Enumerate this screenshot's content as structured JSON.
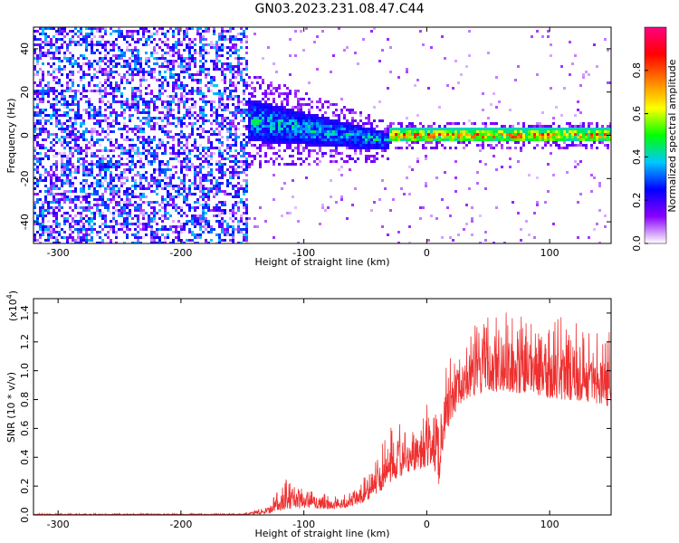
{
  "title": "GN03.2023.231.08.47.C44",
  "chart_data": [
    {
      "type": "heatmap",
      "xlabel": "Height of straight line (km)",
      "ylabel": "Frequency (Hz)",
      "xlim": [
        -320,
        150
      ],
      "ylim": [
        -50,
        50
      ],
      "xticks": [
        -300,
        -200,
        -100,
        0,
        100
      ],
      "yticks": [
        -40,
        -20,
        0,
        20,
        40
      ],
      "colorbar": {
        "label": "Normalized spectral amplitude",
        "range": [
          0.0,
          1.0
        ],
        "ticks": [
          "0.0",
          "0.2",
          "0.4",
          "0.6",
          "0.8"
        ],
        "tick_values": [
          0.0,
          0.2,
          0.4,
          0.6,
          0.8
        ],
        "colormap": [
          "#ffffff",
          "#8a00ff",
          "#0000ff",
          "#00c8ff",
          "#00ff00",
          "#ffff00",
          "#ff8000",
          "#ff0000",
          "#ff0080"
        ]
      },
      "regions": [
        {
          "x_range": [
            -320,
            -145
          ],
          "description": "broadband noise",
          "freq_range": [
            -50,
            50
          ],
          "amplitude": [
            0.0,
            0.15
          ]
        },
        {
          "x_range": [
            -145,
            -30
          ],
          "description": "signal band",
          "freq_center": [
            7,
            -3
          ],
          "freq_halfwidth": [
            10,
            4
          ],
          "amplitude": [
            0.2,
            0.5
          ]
        },
        {
          "x_range": [
            -30,
            150
          ],
          "description": "narrow signal",
          "freq_center": [
            0,
            0
          ],
          "freq_halfwidth": [
            3,
            3
          ],
          "amplitude": [
            0.4,
            1.0
          ]
        }
      ]
    },
    {
      "type": "line",
      "xlabel": "Height of straight line (km)",
      "ylabel": "SNR (10 * v/v)",
      "yscale_label": "(x10",
      "yscale_exp": "4",
      "yscale_close": ")",
      "xlim": [
        -320,
        150
      ],
      "ylim": [
        0,
        1.5
      ],
      "xticks": [
        -300,
        -200,
        -100,
        0,
        100
      ],
      "yticks": [
        "0.0",
        "0.2",
        "0.4",
        "0.6",
        "0.8",
        "1.0",
        "1.2",
        "1.4"
      ],
      "ytick_values": [
        0.0,
        0.2,
        0.4,
        0.6,
        0.8,
        1.0,
        1.2,
        1.4
      ],
      "color": "#ee3030",
      "envelope": {
        "x": [
          -320,
          -150,
          -130,
          -115,
          -100,
          -85,
          -70,
          -55,
          -45,
          -35,
          -25,
          -15,
          -5,
          5,
          10,
          15,
          25,
          35,
          50,
          70,
          90,
          110,
          130,
          150
        ],
        "base": [
          0.0,
          0.0,
          0.01,
          0.04,
          0.05,
          0.04,
          0.04,
          0.07,
          0.12,
          0.18,
          0.25,
          0.3,
          0.32,
          0.35,
          0.2,
          0.55,
          0.75,
          0.82,
          0.85,
          0.85,
          0.82,
          0.8,
          0.78,
          0.75
        ],
        "upper": [
          0.01,
          0.01,
          0.06,
          0.25,
          0.22,
          0.15,
          0.14,
          0.22,
          0.32,
          0.52,
          0.72,
          0.6,
          0.75,
          0.85,
          0.62,
          1.02,
          1.2,
          1.3,
          1.4,
          1.42,
          1.32,
          1.38,
          1.3,
          1.28
        ]
      }
    }
  ]
}
